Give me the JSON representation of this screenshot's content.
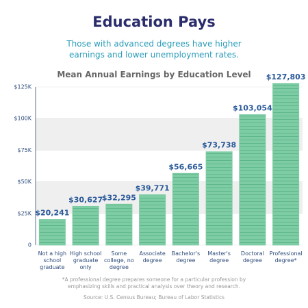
{
  "title": "Education Pays",
  "subtitle": "Those with advanced degrees have higher earnings and lower unemployment rates.",
  "chart_data": {
    "type": "bar",
    "title": "Mean Annual Earnings by Education Level",
    "categories": [
      "Not a high school graduate",
      "High school graduate only",
      "Some college, no degree",
      "Associate degree",
      "Bachelor's degree",
      "Master's degree",
      "Doctoral degree",
      "Professional degree*"
    ],
    "values": [
      20241,
      30627,
      32295,
      39771,
      56665,
      73738,
      103054,
      127803
    ],
    "value_labels": [
      "$20,241",
      "$30,627",
      "$32,295",
      "$39,771",
      "$56,665",
      "$73,738",
      "$103,054",
      "$127,803"
    ],
    "color": "#7dcca4",
    "ylim": [
      0,
      125000
    ],
    "yticks": [
      0,
      {
        "value": 25000,
        "label": "$25K"
      },
      {
        "value": 50000,
        "label": "$50K"
      },
      {
        "value": 75000,
        "label": "$75K"
      },
      {
        "value": 100000,
        "label": "$100K"
      },
      {
        "value": 125000,
        "label": "$125K"
      }
    ],
    "grid": true
  },
  "footnote": "*A professional degree prepares someone for a particular profession by emphasizing skills and practical analysis over theory and research.",
  "source": "Source: U.S. Census Bureau; Bureau of Labor Statistics"
}
